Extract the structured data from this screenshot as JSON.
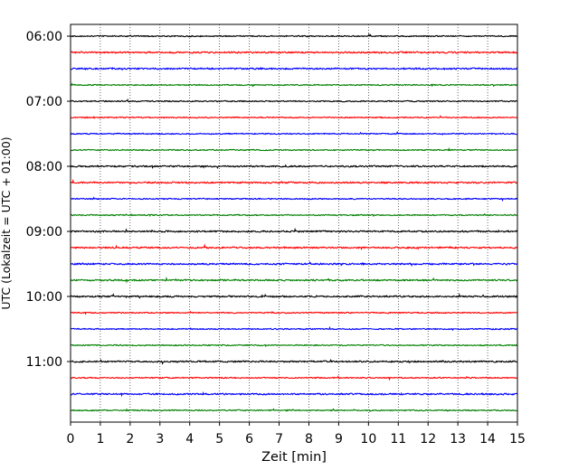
{
  "chart_data": {
    "type": "line",
    "title": "",
    "xlabel": "Zeit  [min]",
    "ylabel": "UTC (Lokalzeit = UTC + 01:00)",
    "xlim": [
      0,
      15
    ],
    "x_ticks": [
      "0",
      "1",
      "2",
      "3",
      "4",
      "5",
      "6",
      "7",
      "8",
      "9",
      "10",
      "11",
      "12",
      "13",
      "14",
      "15"
    ],
    "y_ticks": [
      "06:00",
      "07:00",
      "08:00",
      "09:00",
      "10:00",
      "11:00"
    ],
    "grid": "vertical dotted at each minute",
    "trace_colors_cycle": [
      "#000000",
      "#ff0000",
      "#0000ff",
      "#008000"
    ],
    "series": [
      {
        "start": "06:00",
        "color": "#000000",
        "amplitude": 0.03
      },
      {
        "start": "06:15",
        "color": "#ff0000",
        "amplitude": 0.04
      },
      {
        "start": "06:30",
        "color": "#0000ff",
        "amplitude": 0.04
      },
      {
        "start": "06:45",
        "color": "#008000",
        "amplitude": 0.03
      },
      {
        "start": "07:00",
        "color": "#000000",
        "amplitude": 0.03
      },
      {
        "start": "07:15",
        "color": "#ff0000",
        "amplitude": 0.03
      },
      {
        "start": "07:30",
        "color": "#0000ff",
        "amplitude": 0.03
      },
      {
        "start": "07:45",
        "color": "#008000",
        "amplitude": 0.03
      },
      {
        "start": "08:00",
        "color": "#000000",
        "amplitude": 0.04
      },
      {
        "start": "08:15",
        "color": "#ff0000",
        "amplitude": 0.04
      },
      {
        "start": "08:30",
        "color": "#0000ff",
        "amplitude": 0.03
      },
      {
        "start": "08:45",
        "color": "#008000",
        "amplitude": 0.03
      },
      {
        "start": "09:00",
        "color": "#000000",
        "amplitude": 0.04
      },
      {
        "start": "09:15",
        "color": "#ff0000",
        "amplitude": 0.04
      },
      {
        "start": "09:30",
        "color": "#0000ff",
        "amplitude": 0.04
      },
      {
        "start": "09:45",
        "color": "#008000",
        "amplitude": 0.04
      },
      {
        "start": "10:00",
        "color": "#000000",
        "amplitude": 0.04
      },
      {
        "start": "10:15",
        "color": "#ff0000",
        "amplitude": 0.03
      },
      {
        "start": "10:30",
        "color": "#0000ff",
        "amplitude": 0.03
      },
      {
        "start": "10:45",
        "color": "#008000",
        "amplitude": 0.03
      },
      {
        "start": "11:00",
        "color": "#000000",
        "amplitude": 0.04
      },
      {
        "start": "11:15",
        "color": "#ff0000",
        "amplitude": 0.03
      },
      {
        "start": "11:30",
        "color": "#0000ff",
        "amplitude": 0.04
      },
      {
        "start": "11:45",
        "color": "#008000",
        "amplitude": 0.03
      }
    ]
  }
}
